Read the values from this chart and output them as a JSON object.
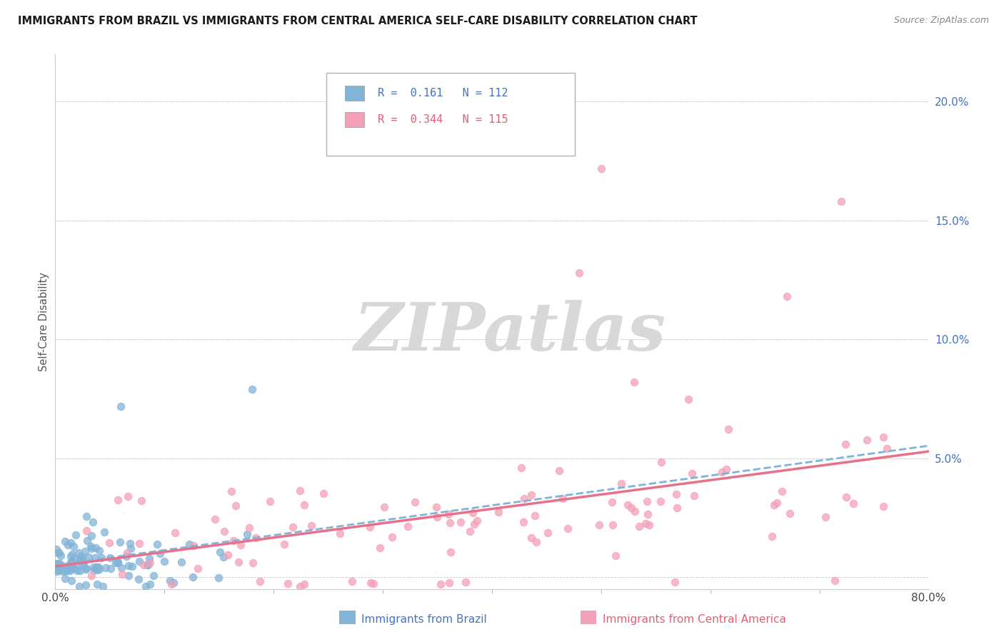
{
  "title": "IMMIGRANTS FROM BRAZIL VS IMMIGRANTS FROM CENTRAL AMERICA SELF-CARE DISABILITY CORRELATION CHART",
  "source": "Source: ZipAtlas.com",
  "ylabel": "Self-Care Disability",
  "brazil_color": "#82b4d8",
  "central_america_color": "#f4a0b8",
  "brazil_line_color": "#82b4d8",
  "ca_line_color": "#e8708a",
  "brazil_R": 0.161,
  "brazil_N": 112,
  "central_america_R": 0.344,
  "central_america_N": 115,
  "xlim": [
    0.0,
    0.8
  ],
  "ylim": [
    -0.005,
    0.22
  ],
  "yticks": [
    0.0,
    0.05,
    0.1,
    0.15,
    0.2
  ],
  "ytick_labels": [
    "",
    "5.0%",
    "10.0%",
    "15.0%",
    "20.0%"
  ],
  "legend_text_blue": "#4472c4",
  "legend_text_pink": "#e0607a",
  "tick_color": "#4472c4",
  "watermark_color": "#d8d8d8"
}
